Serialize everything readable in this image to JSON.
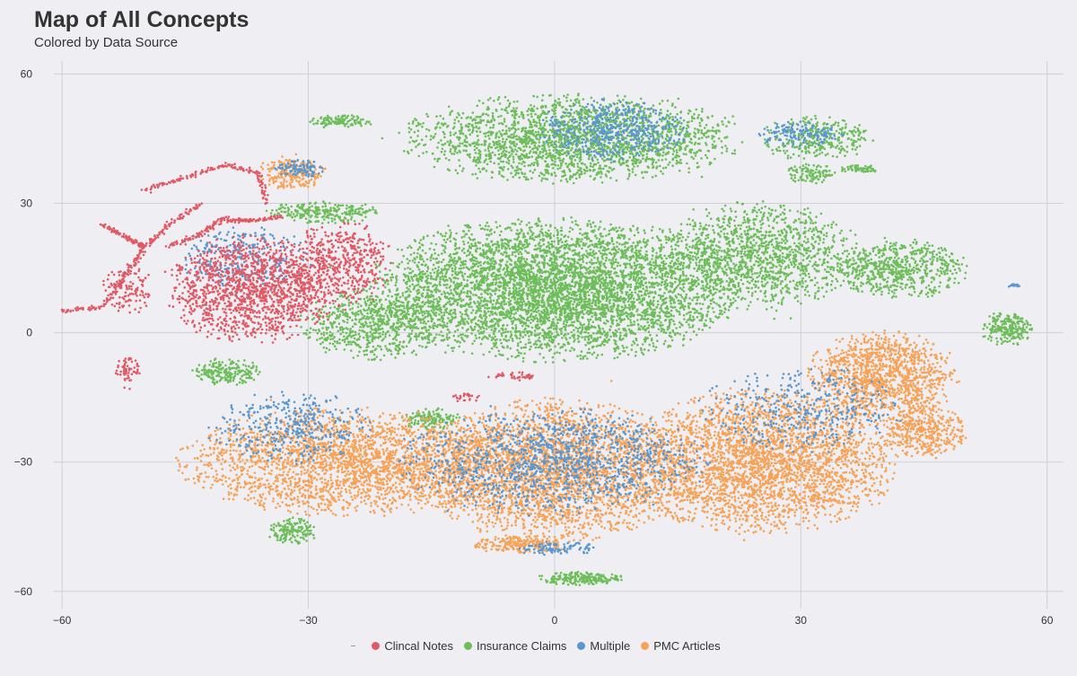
{
  "chart_data": {
    "type": "scatter",
    "title": "Map of All Concepts",
    "subtitle": "Colored by Data Source",
    "xlabel": "",
    "ylabel": "",
    "xlim": [
      -61,
      62
    ],
    "ylim": [
      -64,
      63
    ],
    "x_ticks": [
      -60,
      -30,
      0,
      30,
      60
    ],
    "y_ticks": [
      -60,
      -30,
      0,
      30,
      60
    ],
    "x_tick_labels": [
      "−60",
      "−30",
      "0",
      "30",
      "60"
    ],
    "y_tick_labels": [
      "−60",
      "−30",
      "0",
      "30",
      "60"
    ],
    "grid": true,
    "legend_position": "bottom",
    "series": [
      {
        "name": "Clincal Notes",
        "color": "#e05a66",
        "clusters": [
          {
            "cx": -37,
            "cy": 10,
            "rx": 10,
            "ry": 12,
            "n": 1400
          },
          {
            "cx": -26,
            "cy": 16,
            "rx": 6,
            "ry": 10,
            "n": 500
          },
          {
            "cx": -52,
            "cy": 10,
            "rx": 3,
            "ry": 6,
            "n": 120
          },
          {
            "cx": -52,
            "cy": -9,
            "rx": 1.5,
            "ry": 4,
            "n": 60
          },
          {
            "cx": -5,
            "cy": -10,
            "rx": 3,
            "ry": 1,
            "n": 40
          },
          {
            "cx": -11,
            "cy": -15,
            "rx": 2,
            "ry": 1,
            "n": 25
          }
        ],
        "curves": [
          [
            [
              -60,
              5
            ],
            [
              -55,
              6
            ],
            [
              -52,
              14
            ],
            [
              -50,
              20
            ],
            [
              -47,
              25
            ],
            [
              -43,
              30
            ]
          ],
          [
            [
              -50,
              33
            ],
            [
              -45,
              36
            ],
            [
              -40,
              39
            ],
            [
              -36,
              37
            ],
            [
              -35,
              30
            ]
          ],
          [
            [
              -47,
              20
            ],
            [
              -43,
              23
            ],
            [
              -40,
              27
            ]
          ],
          [
            [
              -40,
              26
            ],
            [
              -37,
              26
            ],
            [
              -33,
              27
            ]
          ],
          [
            [
              -55,
              25
            ],
            [
              -52,
              22
            ],
            [
              -50,
              20
            ]
          ]
        ]
      },
      {
        "name": "Insurance Claims",
        "color": "#6dbd5a",
        "clusters": [
          {
            "cx": 0,
            "cy": 10,
            "rx": 22,
            "ry": 16,
            "n": 5000
          },
          {
            "cx": 2,
            "cy": 45,
            "rx": 20,
            "ry": 10,
            "n": 2200
          },
          {
            "cx": -22,
            "cy": 2,
            "rx": 9,
            "ry": 8,
            "n": 700
          },
          {
            "cx": 25,
            "cy": 18,
            "rx": 12,
            "ry": 12,
            "n": 1300
          },
          {
            "cx": 42,
            "cy": 15,
            "rx": 8,
            "ry": 7,
            "n": 600
          },
          {
            "cx": 32,
            "cy": 45,
            "rx": 7,
            "ry": 5,
            "n": 300
          },
          {
            "cx": -28,
            "cy": 28,
            "rx": 7,
            "ry": 2.5,
            "n": 250
          },
          {
            "cx": -26,
            "cy": 49,
            "rx": 4,
            "ry": 1.5,
            "n": 120
          },
          {
            "cx": -40,
            "cy": -9,
            "rx": 4,
            "ry": 3,
            "n": 200
          },
          {
            "cx": -15,
            "cy": -20,
            "rx": 3.5,
            "ry": 2.5,
            "n": 150
          },
          {
            "cx": -32,
            "cy": -46,
            "rx": 3,
            "ry": 3,
            "n": 150
          },
          {
            "cx": 3,
            "cy": -57,
            "rx": 5,
            "ry": 1.5,
            "n": 200
          },
          {
            "cx": 55,
            "cy": 1,
            "rx": 3,
            "ry": 4,
            "n": 220
          },
          {
            "cx": 31,
            "cy": 37,
            "rx": 3,
            "ry": 2.5,
            "n": 100
          },
          {
            "cx": 37,
            "cy": 38,
            "rx": 2.5,
            "ry": 1,
            "n": 60
          }
        ],
        "curves": []
      },
      {
        "name": "Multiple",
        "color": "#5b97cf",
        "clusters": [
          {
            "cx": -38,
            "cy": 17,
            "rx": 8,
            "ry": 8,
            "n": 300
          },
          {
            "cx": 7,
            "cy": 47,
            "rx": 9,
            "ry": 7,
            "n": 500
          },
          {
            "cx": 0,
            "cy": -30,
            "rx": 18,
            "ry": 12,
            "n": 1300
          },
          {
            "cx": -32,
            "cy": -22,
            "rx": 10,
            "ry": 8,
            "n": 400
          },
          {
            "cx": 30,
            "cy": -18,
            "rx": 12,
            "ry": 10,
            "n": 400
          },
          {
            "cx": 30,
            "cy": 46,
            "rx": 5,
            "ry": 3,
            "n": 150
          },
          {
            "cx": -31,
            "cy": 38,
            "rx": 3,
            "ry": 2,
            "n": 100
          },
          {
            "cx": 0,
            "cy": -50,
            "rx": 5,
            "ry": 1.5,
            "n": 100
          },
          {
            "cx": 56,
            "cy": 11,
            "rx": 1,
            "ry": 0.5,
            "n": 20
          }
        ],
        "curves": []
      },
      {
        "name": "PMC Articles",
        "color": "#f6a257",
        "clusters": [
          {
            "cx": -25,
            "cy": -30,
            "rx": 20,
            "ry": 12,
            "n": 2500
          },
          {
            "cx": 0,
            "cy": -32,
            "rx": 16,
            "ry": 16,
            "n": 2800
          },
          {
            "cx": 25,
            "cy": -30,
            "rx": 16,
            "ry": 16,
            "n": 3000
          },
          {
            "cx": 40,
            "cy": -10,
            "rx": 9,
            "ry": 10,
            "n": 1200
          },
          {
            "cx": -32,
            "cy": 37,
            "rx": 4,
            "ry": 4,
            "n": 220
          },
          {
            "cx": -4,
            "cy": -49,
            "rx": 6,
            "ry": 2,
            "n": 200
          },
          {
            "cx": 45,
            "cy": -23,
            "rx": 5,
            "ry": 6,
            "n": 400
          }
        ],
        "curves": []
      }
    ]
  }
}
